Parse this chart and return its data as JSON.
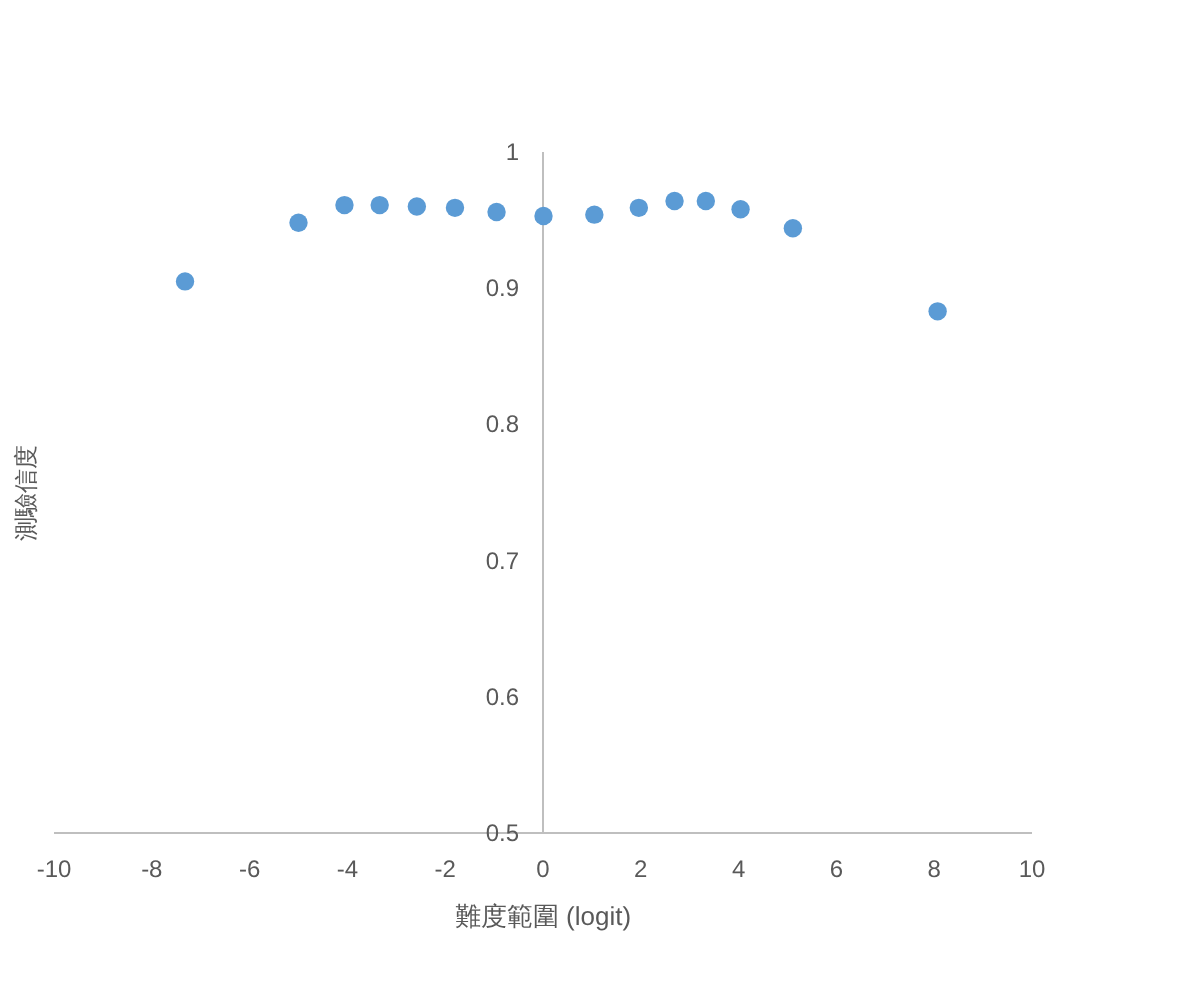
{
  "chart_data": {
    "type": "scatter",
    "xlabel": "難度範圍 (logit)",
    "ylabel": "測驗信度",
    "x": [
      -7.32,
      -5.0,
      -4.06,
      -3.34,
      -2.58,
      -1.8,
      -0.95,
      0.01,
      1.05,
      1.96,
      2.69,
      3.33,
      4.04,
      5.11,
      8.07
    ],
    "series": [
      {
        "color": "#5b9bd5",
        "values": [
          0.905,
          0.948,
          0.961,
          0.961,
          0.96,
          0.959,
          0.956,
          0.953,
          0.954,
          0.959,
          0.964,
          0.964,
          0.958,
          0.944,
          0.883
        ]
      }
    ],
    "xlim": [
      -10,
      10
    ],
    "xticks": [
      -10,
      -8,
      -6,
      -4,
      -2,
      0,
      2,
      4,
      6,
      8,
      10
    ],
    "ylim": [
      0.5,
      1
    ],
    "yticks": [
      0.5,
      0.6,
      0.7,
      0.8,
      0.9,
      1
    ],
    "marker": "circle"
  }
}
